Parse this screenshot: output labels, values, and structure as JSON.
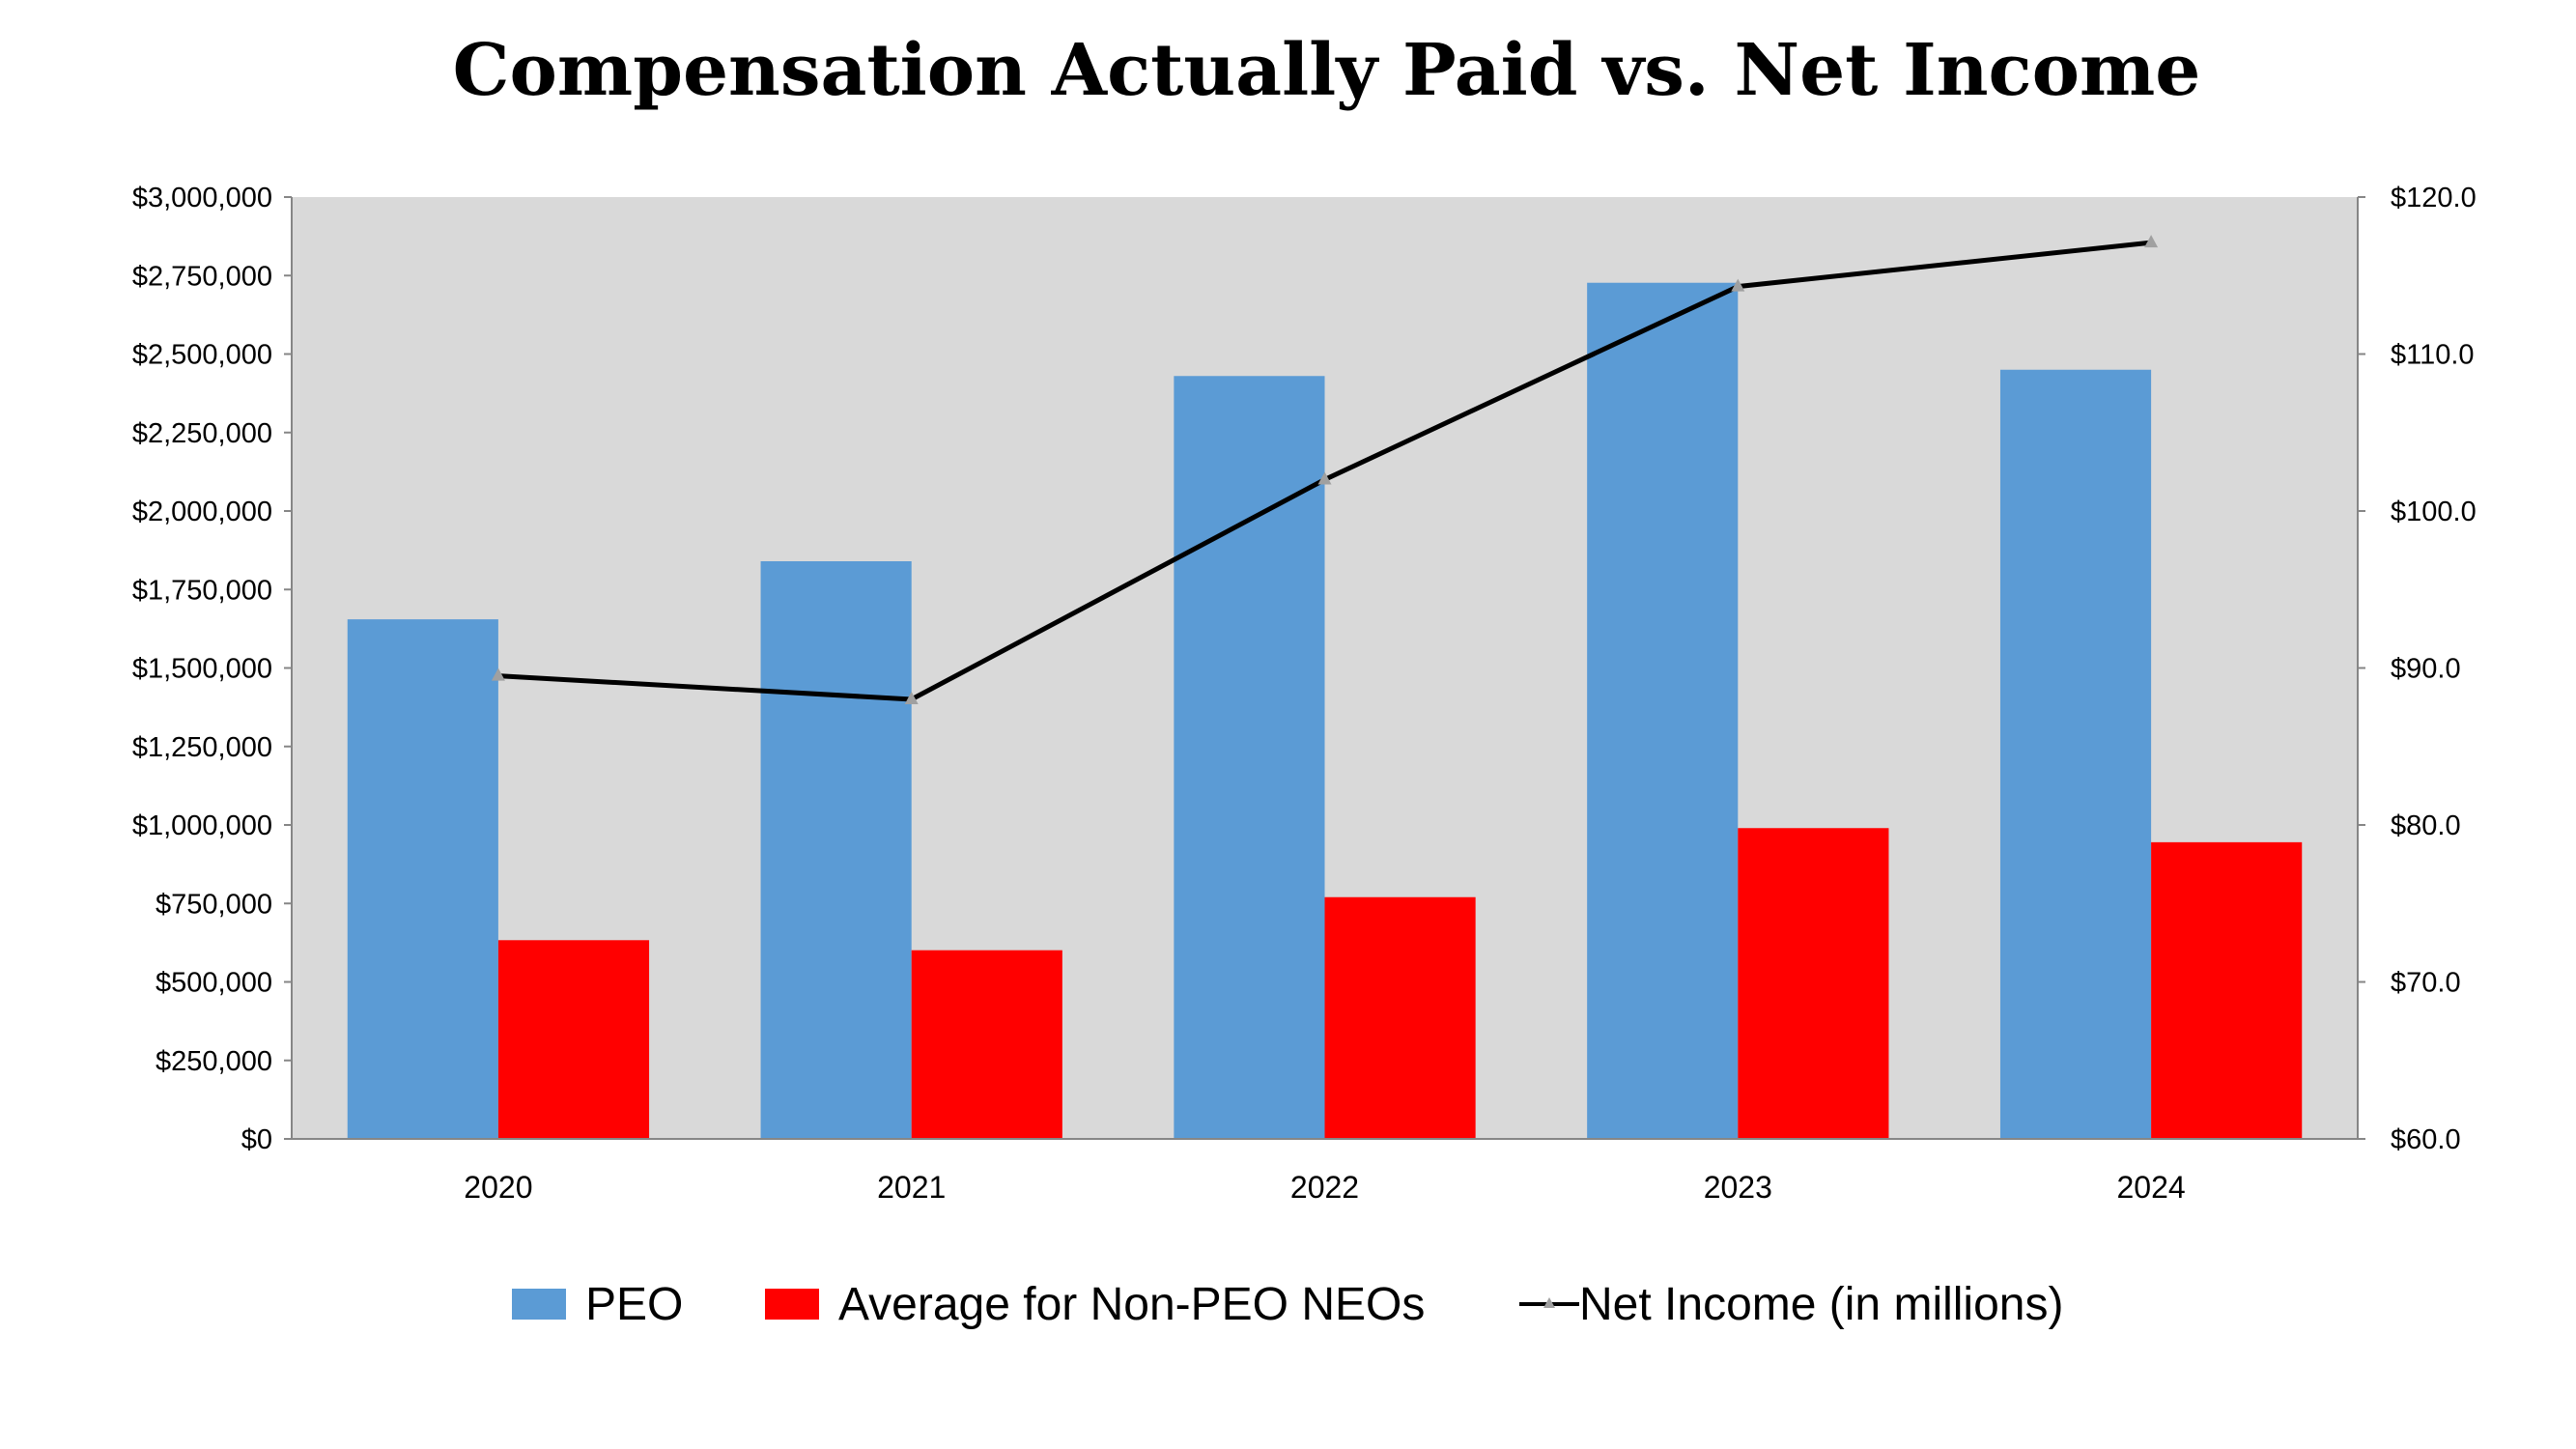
{
  "chart_data": {
    "type": "bar",
    "title": "Compensation Actually Paid vs. Net Income",
    "categories": [
      "2020",
      "2021",
      "2022",
      "2023",
      "2024"
    ],
    "series": [
      {
        "name": "PEO",
        "type": "bar",
        "axis": "left",
        "color": "#5B9BD5",
        "values": [
          1655000,
          1840000,
          2430000,
          2727000,
          2450000
        ]
      },
      {
        "name": "Average for Non-PEO NEOs",
        "type": "bar",
        "axis": "left",
        "color": "#FF0000",
        "values": [
          633000,
          601000,
          770000,
          990000,
          945000
        ]
      },
      {
        "name": "Net Income (in millions)",
        "type": "line",
        "axis": "right",
        "color": "#000000",
        "marker": "triangle",
        "marker_color": "#A0A0A0",
        "values": [
          89.5,
          88.0,
          102.0,
          114.3,
          117.1
        ]
      }
    ],
    "y_left": {
      "range": [
        0,
        3000000
      ],
      "ticks": [
        "$0",
        "$250,000",
        "$500,000",
        "$750,000",
        "$1,000,000",
        "$1,250,000",
        "$1,500,000",
        "$1,750,000",
        "$2,000,000",
        "$2,250,000",
        "$2,500,000",
        "$2,750,000",
        "$3,000,000"
      ]
    },
    "y_right": {
      "range": [
        60,
        120
      ],
      "ticks": [
        "$60.0",
        "$70.0",
        "$80.0",
        "$90.0",
        "$100.0",
        "$110.0",
        "$120.0"
      ]
    },
    "plot_background": "#D9D9D9",
    "grid": false,
    "legend_placement": "bottom"
  }
}
